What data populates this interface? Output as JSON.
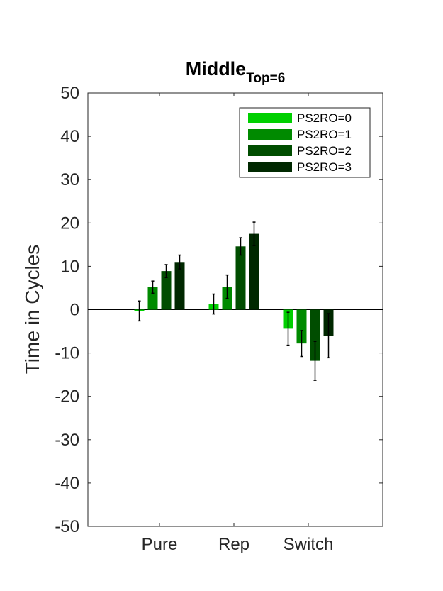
{
  "chart_data": {
    "type": "bar",
    "title": "Middle",
    "title_subscript": "Top=6",
    "ylabel": "Time in Cycles",
    "xlabel": "",
    "ylim": [
      -50,
      50
    ],
    "yticks": [
      -50,
      -40,
      -30,
      -20,
      -10,
      0,
      10,
      20,
      30,
      40,
      50
    ],
    "categories": [
      "Pure",
      "Rep",
      "Switch"
    ],
    "legend_position": "top-right",
    "grid": false,
    "series": [
      {
        "name": "PS2RO=0",
        "color": "#00d000",
        "values": [
          -0.3,
          1.3,
          -4.4
        ],
        "errors": [
          2.3,
          2.3,
          3.8
        ]
      },
      {
        "name": "PS2RO=1",
        "color": "#008a00",
        "values": [
          5.2,
          5.3,
          -7.8
        ],
        "errors": [
          1.4,
          2.7,
          3.0
        ]
      },
      {
        "name": "PS2RO=2",
        "color": "#004d00",
        "values": [
          8.9,
          14.6,
          -11.8
        ],
        "errors": [
          1.5,
          2.0,
          4.5
        ]
      },
      {
        "name": "PS2RO=3",
        "color": "#002800",
        "values": [
          11.0,
          17.5,
          -6.0
        ],
        "errors": [
          1.6,
          2.7,
          5.1
        ]
      }
    ]
  }
}
